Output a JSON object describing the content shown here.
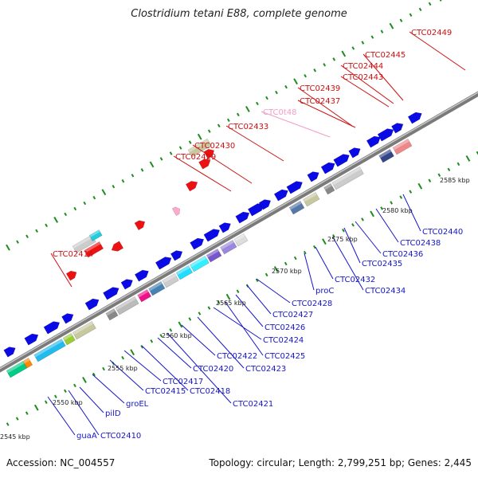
{
  "title": "Clostridium tetani E88, complete genome",
  "footer": {
    "accession": "Accession: NC_004557",
    "topology": "Topology: circular; Length: 2,799,251 bp; Genes: 2,445"
  },
  "colors": {
    "backbone": "#888888",
    "forward_gene": "#0a0ae6",
    "red_gene": "#ee1111",
    "label_blue": "#1616c8",
    "label_red": "#cc1111",
    "label_pink": "#f29cc6",
    "tick": "#1f8c1f"
  },
  "scale_labels": [
    "2545 kbp",
    "2550 kbp",
    "2555 kbp",
    "2560 kbp",
    "2565 kbp",
    "2570 kbp",
    "2575 kbp",
    "2580 kbp",
    "2585 kbp"
  ],
  "lower_labels": [
    "guaA",
    "CTC02410",
    "pilD",
    "groEL",
    "CTC02415",
    "CTC02417",
    "CTC02418",
    "CTC02420",
    "CTC02421",
    "CTC02422",
    "CTC02423",
    "CTC02424",
    "CTC02425",
    "CTC02426",
    "CTC02427",
    "CTC02428",
    "proC",
    "CTC02432",
    "CTC02434",
    "CTC02435",
    "CTC02436",
    "CTC02438",
    "CTC02440"
  ],
  "upper_labels": [
    "CTC02414",
    "CTC02429",
    "CTC02430",
    "CTC02433",
    "CTC0t48",
    "CTC02437",
    "CTC02439",
    "CTC02443",
    "CTC02444",
    "CTC02445",
    "CTC02449"
  ]
}
